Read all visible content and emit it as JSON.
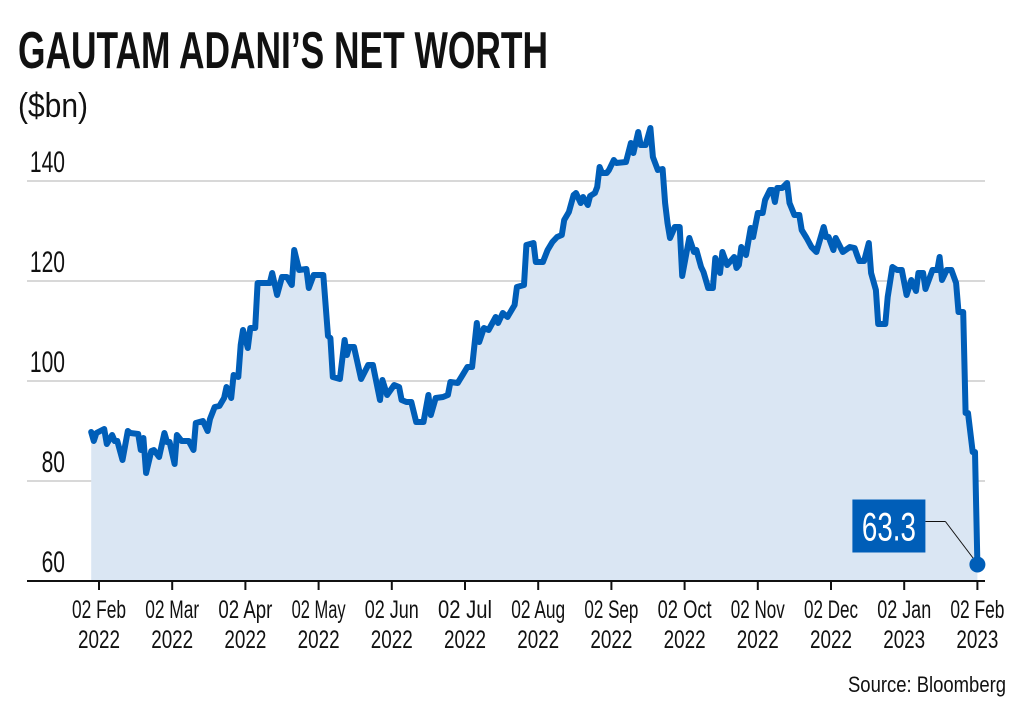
{
  "header": {
    "title": "GAUTAM ADANI’S NET WORTH",
    "subtitle": "($bn)"
  },
  "footer": {
    "source": "Source: Bloomberg"
  },
  "colors": {
    "line": "#005eb8",
    "fill": "#dae6f3",
    "grid": "#cccccc",
    "annotation_bg": "#005eb8"
  },
  "chart_data": {
    "type": "area",
    "title": "GAUTAM ADANI’S NET WORTH",
    "ylabel": "($bn)",
    "xlabel": "",
    "ylim": [
      60,
      150
    ],
    "grid": true,
    "y_ticks": [
      60,
      80,
      100,
      120,
      140
    ],
    "x_ticks": [
      {
        "date": "2022-02-02",
        "label": [
          "02 Feb",
          "2022"
        ]
      },
      {
        "date": "2022-03-02",
        "label": [
          "02 Mar",
          "2022"
        ]
      },
      {
        "date": "2022-04-02",
        "label": [
          "02 Apr",
          "2022"
        ]
      },
      {
        "date": "2022-05-02",
        "label": [
          "02 May",
          "2022"
        ]
      },
      {
        "date": "2022-06-02",
        "label": [
          "02 Jun",
          "2022"
        ]
      },
      {
        "date": "2022-07-02",
        "label": [
          "02 Jul",
          "2022"
        ]
      },
      {
        "date": "2022-08-02",
        "label": [
          "02 Aug",
          "2022"
        ]
      },
      {
        "date": "2022-09-02",
        "label": [
          "02 Sep",
          "2022"
        ]
      },
      {
        "date": "2022-10-02",
        "label": [
          "02 Oct",
          "2022"
        ]
      },
      {
        "date": "2022-11-02",
        "label": [
          "02 Nov",
          "2022"
        ]
      },
      {
        "date": "2022-12-02",
        "label": [
          "02 Dec",
          "2022"
        ]
      },
      {
        "date": "2023-01-02",
        "label": [
          "02 Jan",
          "2023"
        ]
      },
      {
        "date": "2023-02-02",
        "label": [
          "02 Feb",
          "2023"
        ]
      }
    ],
    "annotation": {
      "date": "2023-02-02",
      "value": 63.3,
      "label": "63.3"
    },
    "series": [
      {
        "points": [
          [
            "2022-01-30",
            89.8
          ],
          [
            "2022-01-31",
            88.0
          ],
          [
            "2022-02-01",
            89.6
          ],
          [
            "2022-02-04",
            90.4
          ],
          [
            "2022-02-05",
            87.4
          ],
          [
            "2022-02-07",
            89.2
          ],
          [
            "2022-02-08",
            88.0
          ],
          [
            "2022-02-09",
            88.0
          ],
          [
            "2022-02-11",
            84.2
          ],
          [
            "2022-02-13",
            90.0
          ],
          [
            "2022-02-14",
            89.6
          ],
          [
            "2022-02-17",
            89.4
          ],
          [
            "2022-02-18",
            86.2
          ],
          [
            "2022-02-19",
            88.6
          ],
          [
            "2022-02-20",
            81.6
          ],
          [
            "2022-02-22",
            86.0
          ],
          [
            "2022-02-23",
            86.2
          ],
          [
            "2022-02-25",
            84.8
          ],
          [
            "2022-02-27",
            89.6
          ],
          [
            "2022-02-28",
            87.8
          ],
          [
            "2022-03-01",
            87.8
          ],
          [
            "2022-03-03",
            83.4
          ],
          [
            "2022-03-04",
            89.2
          ],
          [
            "2022-03-06",
            88.0
          ],
          [
            "2022-03-09",
            88.0
          ],
          [
            "2022-03-11",
            86.2
          ],
          [
            "2022-03-12",
            91.6
          ],
          [
            "2022-03-15",
            92.0
          ],
          [
            "2022-03-17",
            90.0
          ],
          [
            "2022-03-18",
            92.4
          ],
          [
            "2022-03-20",
            94.8
          ],
          [
            "2022-03-22",
            95.0
          ],
          [
            "2022-03-24",
            96.6
          ],
          [
            "2022-03-25",
            98.8
          ],
          [
            "2022-03-27",
            96.6
          ],
          [
            "2022-03-28",
            101.2
          ],
          [
            "2022-03-30",
            100.8
          ],
          [
            "2022-03-31",
            107.2
          ],
          [
            "2022-04-01",
            110.2
          ],
          [
            "2022-04-03",
            106.6
          ],
          [
            "2022-04-04",
            110.6
          ],
          [
            "2022-04-06",
            110.6
          ],
          [
            "2022-04-07",
            119.6
          ],
          [
            "2022-04-12",
            119.6
          ],
          [
            "2022-04-13",
            121.6
          ],
          [
            "2022-04-15",
            117.2
          ],
          [
            "2022-04-17",
            120.8
          ],
          [
            "2022-04-19",
            120.8
          ],
          [
            "2022-04-21",
            119.2
          ],
          [
            "2022-04-22",
            126.2
          ],
          [
            "2022-04-24",
            122.2
          ],
          [
            "2022-04-27",
            122.4
          ],
          [
            "2022-04-28",
            118.6
          ],
          [
            "2022-04-30",
            121.2
          ],
          [
            "2022-05-04",
            121.2
          ],
          [
            "2022-05-06",
            109.0
          ],
          [
            "2022-05-07",
            108.6
          ],
          [
            "2022-05-08",
            100.8
          ],
          [
            "2022-05-11",
            100.4
          ],
          [
            "2022-05-13",
            108.2
          ],
          [
            "2022-05-14",
            105.2
          ],
          [
            "2022-05-15",
            106.8
          ],
          [
            "2022-05-17",
            106.8
          ],
          [
            "2022-05-20",
            100.4
          ],
          [
            "2022-05-23",
            103.2
          ],
          [
            "2022-05-25",
            103.2
          ],
          [
            "2022-05-28",
            96.2
          ],
          [
            "2022-05-29",
            100.2
          ],
          [
            "2022-05-31",
            97.2
          ],
          [
            "2022-06-03",
            99.2
          ],
          [
            "2022-06-05",
            98.8
          ],
          [
            "2022-06-06",
            96.2
          ],
          [
            "2022-06-08",
            95.8
          ],
          [
            "2022-06-10",
            95.8
          ],
          [
            "2022-06-12",
            91.8
          ],
          [
            "2022-06-15",
            91.8
          ],
          [
            "2022-06-17",
            97.2
          ],
          [
            "2022-06-18",
            93.2
          ],
          [
            "2022-06-20",
            96.6
          ],
          [
            "2022-06-23",
            96.8
          ],
          [
            "2022-06-25",
            97.2
          ],
          [
            "2022-06-26",
            99.8
          ],
          [
            "2022-06-29",
            99.6
          ],
          [
            "2022-07-01",
            101.2
          ],
          [
            "2022-07-03",
            102.8
          ],
          [
            "2022-07-05",
            102.8
          ],
          [
            "2022-07-07",
            111.6
          ],
          [
            "2022-07-08",
            107.8
          ],
          [
            "2022-07-10",
            110.6
          ],
          [
            "2022-07-12",
            110.2
          ],
          [
            "2022-07-15",
            112.8
          ],
          [
            "2022-07-16",
            111.6
          ],
          [
            "2022-07-18",
            113.6
          ],
          [
            "2022-07-20",
            112.8
          ],
          [
            "2022-07-23",
            115.2
          ],
          [
            "2022-07-24",
            118.8
          ],
          [
            "2022-07-27",
            119.2
          ],
          [
            "2022-07-28",
            127.2
          ],
          [
            "2022-07-31",
            127.6
          ],
          [
            "2022-08-01",
            123.8
          ],
          [
            "2022-08-04",
            123.8
          ],
          [
            "2022-08-06",
            126.2
          ],
          [
            "2022-08-08",
            127.8
          ],
          [
            "2022-08-10",
            128.8
          ],
          [
            "2022-08-12",
            129.2
          ],
          [
            "2022-08-13",
            132.2
          ],
          [
            "2022-08-15",
            133.8
          ],
          [
            "2022-08-17",
            137.2
          ],
          [
            "2022-08-18",
            137.6
          ],
          [
            "2022-08-20",
            135.6
          ],
          [
            "2022-08-21",
            136.8
          ],
          [
            "2022-08-23",
            135.2
          ],
          [
            "2022-08-24",
            137.0
          ],
          [
            "2022-08-26",
            137.6
          ],
          [
            "2022-08-27",
            138.8
          ],
          [
            "2022-08-28",
            142.8
          ],
          [
            "2022-08-29",
            141.6
          ],
          [
            "2022-08-31",
            141.6
          ],
          [
            "2022-09-01",
            142.2
          ],
          [
            "2022-09-03",
            144.2
          ],
          [
            "2022-09-04",
            143.6
          ],
          [
            "2022-09-08",
            143.8
          ],
          [
            "2022-09-10",
            147.6
          ],
          [
            "2022-09-11",
            145.6
          ],
          [
            "2022-09-13",
            149.8
          ],
          [
            "2022-09-14",
            147.2
          ],
          [
            "2022-09-16",
            147.2
          ],
          [
            "2022-09-18",
            150.6
          ],
          [
            "2022-09-19",
            144.8
          ],
          [
            "2022-09-21",
            142.2
          ],
          [
            "2022-09-23",
            142.4
          ],
          [
            "2022-09-24",
            135.6
          ],
          [
            "2022-09-25",
            131.6
          ],
          [
            "2022-09-26",
            128.6
          ],
          [
            "2022-09-28",
            130.8
          ],
          [
            "2022-09-30",
            130.8
          ],
          [
            "2022-10-01",
            121.0
          ],
          [
            "2022-10-03",
            126.2
          ],
          [
            "2022-10-04",
            128.6
          ],
          [
            "2022-10-06",
            125.8
          ],
          [
            "2022-10-07",
            126.2
          ],
          [
            "2022-10-09",
            122.8
          ],
          [
            "2022-10-10",
            121.8
          ],
          [
            "2022-10-12",
            118.6
          ],
          [
            "2022-10-14",
            118.6
          ],
          [
            "2022-10-15",
            124.6
          ],
          [
            "2022-10-17",
            121.6
          ],
          [
            "2022-10-18",
            125.8
          ],
          [
            "2022-10-20",
            123.2
          ],
          [
            "2022-10-23",
            124.8
          ],
          [
            "2022-10-24",
            122.6
          ],
          [
            "2022-10-25",
            123.2
          ],
          [
            "2022-10-26",
            126.8
          ],
          [
            "2022-10-28",
            125.2
          ],
          [
            "2022-10-30",
            130.6
          ],
          [
            "2022-10-31",
            128.8
          ],
          [
            "2022-11-02",
            133.6
          ],
          [
            "2022-11-04",
            133.6
          ],
          [
            "2022-11-05",
            136.2
          ],
          [
            "2022-11-07",
            138.2
          ],
          [
            "2022-11-08",
            138.2
          ],
          [
            "2022-11-09",
            135.8
          ],
          [
            "2022-11-10",
            138.6
          ],
          [
            "2022-11-12",
            138.6
          ],
          [
            "2022-11-14",
            139.6
          ],
          [
            "2022-11-15",
            135.6
          ],
          [
            "2022-11-17",
            133.2
          ],
          [
            "2022-11-19",
            133.2
          ],
          [
            "2022-11-20",
            130.2
          ],
          [
            "2022-11-22",
            128.6
          ],
          [
            "2022-11-24",
            126.8
          ],
          [
            "2022-11-26",
            125.8
          ],
          [
            "2022-11-29",
            130.8
          ],
          [
            "2022-11-30",
            128.8
          ],
          [
            "2022-12-01",
            128.8
          ],
          [
            "2022-12-03",
            126.2
          ],
          [
            "2022-12-04",
            128.6
          ],
          [
            "2022-12-07",
            125.8
          ],
          [
            "2022-12-10",
            126.8
          ],
          [
            "2022-12-12",
            126.6
          ],
          [
            "2022-12-13",
            125.2
          ],
          [
            "2022-12-14",
            124.0
          ],
          [
            "2022-12-16",
            124.0
          ],
          [
            "2022-12-18",
            127.6
          ],
          [
            "2022-12-19",
            121.6
          ],
          [
            "2022-12-21",
            118.2
          ],
          [
            "2022-12-22",
            111.4
          ],
          [
            "2022-12-25",
            111.4
          ],
          [
            "2022-12-26",
            116.8
          ],
          [
            "2022-12-28",
            122.8
          ],
          [
            "2022-12-30",
            122.2
          ],
          [
            "2023-01-01",
            122.2
          ],
          [
            "2023-01-03",
            117.2
          ],
          [
            "2023-01-05",
            120.2
          ],
          [
            "2023-01-07",
            118.0
          ],
          [
            "2023-01-08",
            121.6
          ],
          [
            "2023-01-10",
            121.6
          ],
          [
            "2023-01-11",
            118.4
          ],
          [
            "2023-01-14",
            122.2
          ],
          [
            "2023-01-16",
            122.2
          ],
          [
            "2023-01-17",
            124.8
          ],
          [
            "2023-01-18",
            120.2
          ],
          [
            "2023-01-20",
            122.2
          ],
          [
            "2023-01-22",
            122.2
          ],
          [
            "2023-01-24",
            119.6
          ],
          [
            "2023-01-25",
            113.8
          ],
          [
            "2023-01-27",
            113.8
          ],
          [
            "2023-01-28",
            93.6
          ],
          [
            "2023-01-29",
            93.6
          ],
          [
            "2023-01-31",
            85.8
          ],
          [
            "2023-02-01",
            85.8
          ],
          [
            "2023-02-02",
            63.3
          ]
        ]
      }
    ]
  }
}
